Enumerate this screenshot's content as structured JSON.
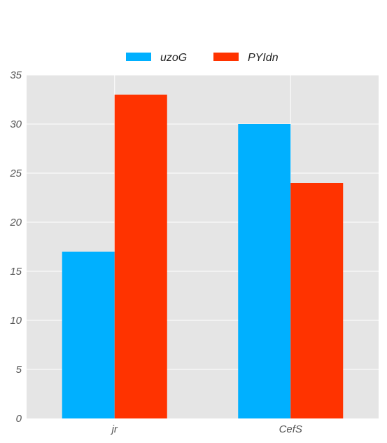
{
  "chart_data": {
    "type": "bar",
    "categories": [
      "jr",
      "CefS"
    ],
    "series": [
      {
        "name": "uzoG",
        "color": "#00b0ff",
        "values": [
          17,
          30
        ]
      },
      {
        "name": "PYIdn",
        "color": "#ff3300",
        "values": [
          33,
          24
        ]
      }
    ],
    "ylim": [
      0,
      35
    ],
    "yticks": [
      0,
      5,
      10,
      15,
      20,
      25,
      30,
      35
    ],
    "grid": true,
    "legend_position": "top-center",
    "colors": {
      "plot_background": "#e5e5e5",
      "grid": "#ffffff",
      "tick_label": "#555555"
    }
  }
}
